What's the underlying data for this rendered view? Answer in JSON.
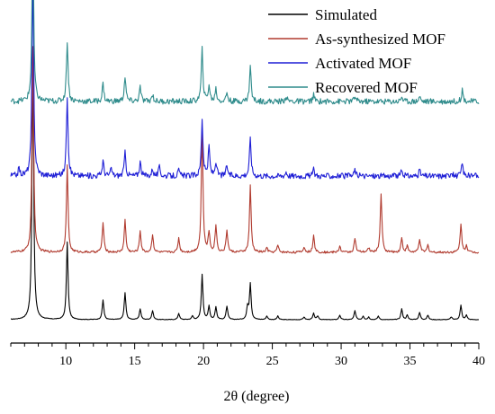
{
  "chart_data": {
    "type": "line",
    "xlabel": "2θ (degree)",
    "ylabel": "",
    "xlim": [
      6,
      40
    ],
    "x_ticks": [
      10,
      15,
      20,
      25,
      30,
      35,
      40
    ],
    "y_ticks_shown": false,
    "grid": false,
    "legend_position": "top-right",
    "series": [
      {
        "name": "Simulated",
        "color": "#000000",
        "offset": 0,
        "baseline": 8,
        "peaks": [
          [
            7.6,
            300
          ],
          [
            10.1,
            86
          ],
          [
            12.7,
            22
          ],
          [
            14.3,
            30
          ],
          [
            15.4,
            12
          ],
          [
            16.3,
            10
          ],
          [
            18.2,
            7
          ],
          [
            19.2,
            4
          ],
          [
            19.9,
            50
          ],
          [
            20.4,
            15
          ],
          [
            20.9,
            14
          ],
          [
            21.7,
            15
          ],
          [
            23.2,
            14
          ],
          [
            23.4,
            40
          ],
          [
            24.6,
            4
          ],
          [
            25.4,
            4
          ],
          [
            27.3,
            3
          ],
          [
            28.0,
            7
          ],
          [
            28.3,
            4
          ],
          [
            29.9,
            5
          ],
          [
            31.0,
            10
          ],
          [
            31.6,
            4
          ],
          [
            32.0,
            3
          ],
          [
            32.7,
            4
          ],
          [
            34.4,
            12
          ],
          [
            34.8,
            5
          ],
          [
            35.7,
            8
          ],
          [
            36.3,
            5
          ],
          [
            38.0,
            3
          ],
          [
            38.7,
            16
          ],
          [
            39.1,
            5
          ]
        ]
      },
      {
        "name": "As-synthesized MOF",
        "color": "#b03a2e",
        "offset": 70,
        "baseline": 13,
        "peaks": [
          [
            7.6,
            230
          ],
          [
            10.1,
            96
          ],
          [
            12.7,
            33
          ],
          [
            14.3,
            36
          ],
          [
            15.4,
            24
          ],
          [
            16.3,
            20
          ],
          [
            18.2,
            16
          ],
          [
            19.9,
            138
          ],
          [
            20.4,
            22
          ],
          [
            20.9,
            30
          ],
          [
            21.7,
            25
          ],
          [
            23.4,
            74
          ],
          [
            24.6,
            5
          ],
          [
            25.4,
            8
          ],
          [
            27.3,
            6
          ],
          [
            28.0,
            18
          ],
          [
            29.9,
            7
          ],
          [
            31.0,
            16
          ],
          [
            32.0,
            5
          ],
          [
            32.9,
            66
          ],
          [
            34.4,
            16
          ],
          [
            34.8,
            7
          ],
          [
            35.7,
            15
          ],
          [
            36.3,
            8
          ],
          [
            38.7,
            32
          ],
          [
            39.1,
            8
          ]
        ]
      },
      {
        "name": "Activated MOF",
        "color": "#1f1fd6",
        "offset": 155,
        "baseline": 13,
        "peaks": [
          [
            6.6,
            8
          ],
          [
            7.6,
            230
          ],
          [
            10.1,
            90
          ],
          [
            12.7,
            17
          ],
          [
            13.3,
            8
          ],
          [
            14.3,
            26
          ],
          [
            15.4,
            16
          ],
          [
            16.3,
            8
          ],
          [
            16.8,
            10
          ],
          [
            18.2,
            6
          ],
          [
            19.9,
            64
          ],
          [
            20.4,
            32
          ],
          [
            20.9,
            16
          ],
          [
            21.7,
            12
          ],
          [
            23.4,
            42
          ],
          [
            26.0,
            5
          ],
          [
            28.0,
            7
          ],
          [
            31.0,
            7
          ],
          [
            34.4,
            6
          ],
          [
            35.7,
            6
          ],
          [
            38.0,
            5
          ],
          [
            38.8,
            14
          ]
        ]
      },
      {
        "name": "Recovered MOF",
        "color": "#2e8b8b",
        "offset": 235,
        "baseline": 16,
        "peaks": [
          [
            7.6,
            190
          ],
          [
            10.1,
            68
          ],
          [
            12.7,
            20
          ],
          [
            14.3,
            28
          ],
          [
            15.4,
            16
          ],
          [
            16.3,
            8
          ],
          [
            19.9,
            58
          ],
          [
            20.4,
            18
          ],
          [
            20.9,
            14
          ],
          [
            21.7,
            10
          ],
          [
            23.4,
            40
          ],
          [
            26.0,
            6
          ],
          [
            28.0,
            7
          ],
          [
            31.0,
            6
          ],
          [
            34.4,
            6
          ],
          [
            35.7,
            6
          ],
          [
            38.8,
            13
          ]
        ]
      }
    ]
  }
}
